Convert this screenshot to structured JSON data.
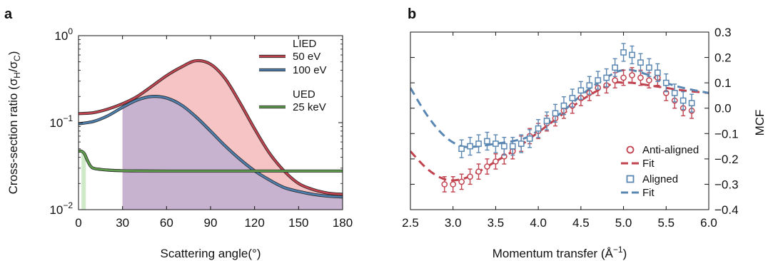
{
  "chart_data": [
    {
      "panel": "a",
      "type": "line",
      "xlabel": "Scattering angle(°)",
      "ylabel": "Cross-section ratio (σH/σC)",
      "ylabel_parts": {
        "main": "Cross-section ratio (σ",
        "s1": "H",
        "mid": "/σ",
        "s2": "C",
        "end": ")"
      },
      "xlim": [
        0,
        180
      ],
      "ylim": [
        0.01,
        1
      ],
      "yscale": "log",
      "x_ticks": [
        0,
        30,
        60,
        90,
        120,
        150,
        180
      ],
      "x_tick_labels": [
        "0",
        "30",
        "60",
        "90",
        "120",
        "150",
        "180"
      ],
      "y_ticks": [
        {
          "value": 1,
          "base": "10",
          "exp": "0"
        },
        {
          "value": 0.1,
          "base": "10",
          "exp": "−1"
        },
        {
          "value": 0.01,
          "base": "10",
          "exp": "−2"
        }
      ],
      "legend_groups": [
        {
          "title": "LIED",
          "entries": [
            "50 eV",
            "100 eV"
          ]
        },
        {
          "title": "UED",
          "entries": [
            "25 keV"
          ]
        }
      ],
      "legend_position": "top-right",
      "series": [
        {
          "name": "50 eV",
          "color": "#c0434f",
          "fill": "#f7c4c6",
          "fill_from": 30,
          "x": [
            0,
            10,
            20,
            30,
            40,
            50,
            60,
            70,
            80,
            90,
            100,
            110,
            120,
            130,
            140,
            150,
            160,
            170,
            180
          ],
          "y": [
            0.127,
            0.13,
            0.143,
            0.165,
            0.2,
            0.262,
            0.347,
            0.435,
            0.515,
            0.47,
            0.32,
            0.17,
            0.085,
            0.045,
            0.028,
            0.02,
            0.017,
            0.0155,
            0.015
          ]
        },
        {
          "name": "100 eV",
          "color": "#4f7fae",
          "fill": "#c7b2cf",
          "fill_from": 30,
          "x": [
            0,
            10,
            20,
            30,
            40,
            50,
            60,
            70,
            80,
            90,
            100,
            110,
            120,
            130,
            140,
            150,
            160,
            170,
            180
          ],
          "y": [
            0.097,
            0.103,
            0.12,
            0.15,
            0.182,
            0.2,
            0.192,
            0.16,
            0.117,
            0.08,
            0.054,
            0.038,
            0.028,
            0.022,
            0.018,
            0.0162,
            0.015,
            0.0143,
            0.014
          ]
        },
        {
          "name": "25 keV",
          "color": "#5f9e4c",
          "fill": "#cfeac9",
          "fill_to": 5,
          "x": [
            0,
            2,
            4,
            6,
            8,
            10,
            15,
            20,
            30,
            40,
            60,
            90,
            120,
            150,
            180
          ],
          "y": [
            0.047,
            0.047,
            0.044,
            0.037,
            0.032,
            0.03,
            0.029,
            0.0285,
            0.028,
            0.0279,
            0.0278,
            0.0278,
            0.0278,
            0.0278,
            0.0278
          ]
        }
      ]
    },
    {
      "panel": "b",
      "type": "scatter",
      "xlabel": "Momentum transfer (Å−1)",
      "xlabel_parts": {
        "main": "Momentum transfer (Å",
        "sup": "−1",
        "end": ")"
      },
      "ylabel": "MCF",
      "xlim": [
        2.5,
        6.0
      ],
      "ylim": [
        -0.4,
        0.3
      ],
      "x_ticks": [
        2.5,
        3.0,
        3.5,
        4.0,
        4.5,
        5.0,
        5.5,
        6.0
      ],
      "x_tick_labels": [
        "2.5",
        "3.0",
        "3.5",
        "4.0",
        "4.5",
        "5.0",
        "5.5",
        "6.0"
      ],
      "y_ticks": [
        -0.4,
        -0.3,
        -0.2,
        -0.1,
        0.0,
        0.1,
        0.2,
        0.3
      ],
      "y_tick_labels": [
        "−0.4",
        "−0.3",
        "−0.2",
        "−0.1",
        "0.0",
        "0.1",
        "0.2",
        "0.3"
      ],
      "y_axis_side": "right",
      "legend_position": "bottom-right",
      "series": [
        {
          "name": "Anti-aligned",
          "marker": "circle",
          "color": "#c0434f",
          "x": [
            2.9,
            3.0,
            3.1,
            3.2,
            3.3,
            3.4,
            3.5,
            3.6,
            3.7,
            3.8,
            3.9,
            4.0,
            4.1,
            4.2,
            4.3,
            4.4,
            4.5,
            4.6,
            4.7,
            4.8,
            4.9,
            5.0,
            5.1,
            5.2,
            5.3,
            5.4,
            5.5,
            5.6,
            5.7,
            5.8
          ],
          "y": [
            -0.3,
            -0.3,
            -0.29,
            -0.27,
            -0.25,
            -0.23,
            -0.21,
            -0.19,
            -0.17,
            -0.14,
            -0.11,
            -0.09,
            -0.06,
            -0.04,
            -0.01,
            0.01,
            0.04,
            0.06,
            0.08,
            0.09,
            0.11,
            0.12,
            0.13,
            0.12,
            0.11,
            0.12,
            0.06,
            0.03,
            0.0,
            -0.01
          ],
          "err": 0.03
        },
        {
          "name": "Fit",
          "line": "dashed",
          "color": "#c0434f",
          "x": [
            2.5,
            2.7,
            2.9,
            3.1,
            3.3,
            3.5,
            3.7,
            3.9,
            4.1,
            4.3,
            4.5,
            4.7,
            4.9,
            5.0,
            5.1,
            5.3,
            5.5,
            5.7,
            6.0
          ],
          "y": [
            -0.17,
            -0.24,
            -0.28,
            -0.28,
            -0.25,
            -0.21,
            -0.17,
            -0.12,
            -0.07,
            -0.02,
            0.03,
            0.07,
            0.1,
            0.1,
            0.1,
            0.09,
            0.08,
            0.07,
            0.06
          ]
        },
        {
          "name": "Aligned",
          "marker": "square",
          "color": "#5a87b2",
          "x": [
            3.1,
            3.2,
            3.3,
            3.4,
            3.5,
            3.6,
            3.7,
            3.8,
            3.9,
            4.0,
            4.1,
            4.2,
            4.3,
            4.4,
            4.5,
            4.6,
            4.7,
            4.8,
            4.9,
            5.0,
            5.1,
            5.2,
            5.3,
            5.4,
            5.5,
            5.6,
            5.7,
            5.8
          ],
          "y": [
            -0.16,
            -0.15,
            -0.14,
            -0.13,
            -0.14,
            -0.15,
            -0.15,
            -0.14,
            -0.12,
            -0.08,
            -0.05,
            -0.02,
            0.01,
            0.04,
            0.07,
            0.09,
            0.11,
            0.12,
            0.16,
            0.22,
            0.21,
            0.18,
            0.16,
            0.14,
            0.1,
            0.06,
            0.03,
            0.02
          ],
          "err": 0.035
        },
        {
          "name": "Fit",
          "line": "dashed",
          "color": "#5a87b2",
          "x": [
            2.5,
            2.7,
            2.9,
            3.1,
            3.3,
            3.5,
            3.7,
            3.9,
            4.1,
            4.3,
            4.5,
            4.7,
            4.9,
            5.0,
            5.1,
            5.3,
            5.5,
            5.7,
            6.0
          ],
          "y": [
            0.08,
            -0.03,
            -0.11,
            -0.15,
            -0.15,
            -0.14,
            -0.13,
            -0.11,
            -0.06,
            -0.01,
            0.05,
            0.1,
            0.14,
            0.15,
            0.15,
            0.13,
            0.1,
            0.08,
            0.06
          ]
        }
      ]
    }
  ]
}
